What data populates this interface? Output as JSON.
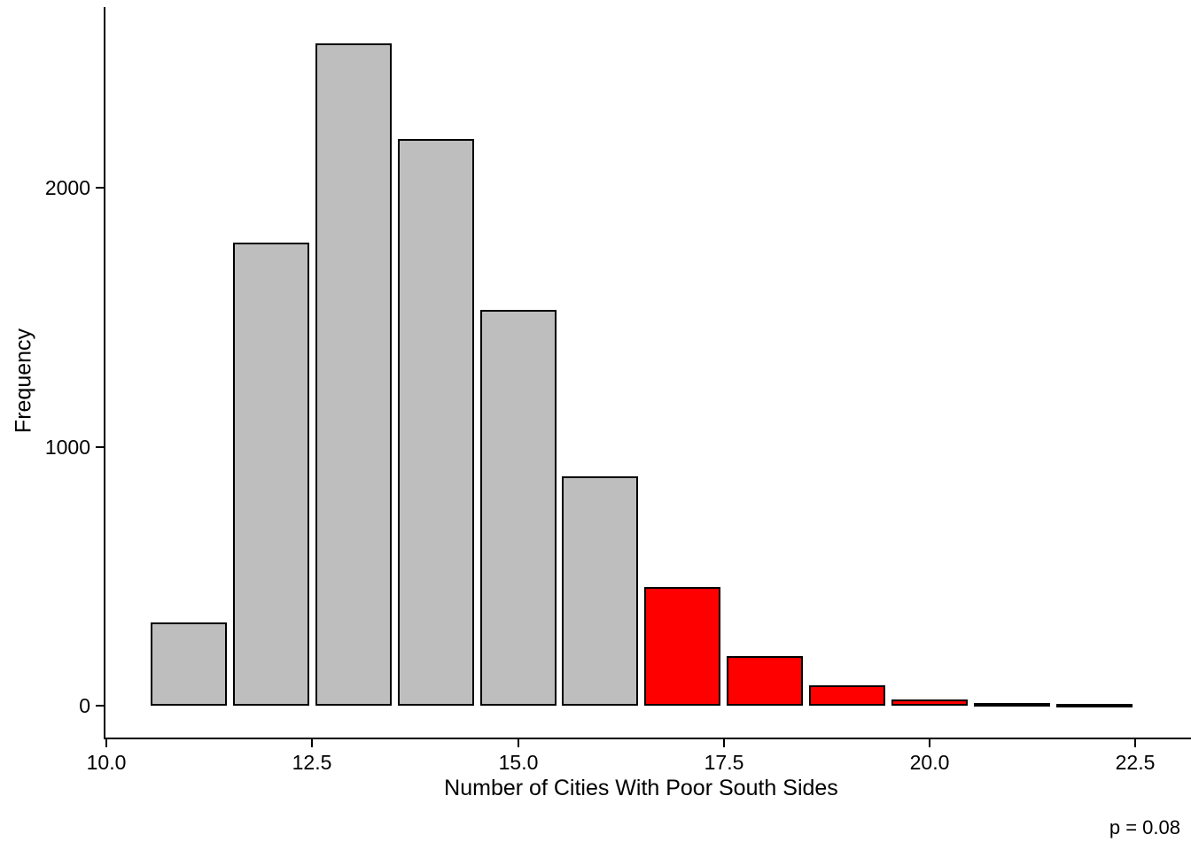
{
  "chart_data": {
    "type": "bar",
    "subtype": "histogram",
    "title": "",
    "xlabel": "Number of Cities With Poor South Sides",
    "ylabel": "Frequency",
    "annotation": "p = 0.08",
    "x": [
      11,
      12,
      13,
      14,
      15,
      16,
      17,
      18,
      19,
      20,
      21,
      22
    ],
    "values": [
      320,
      1790,
      2560,
      2190,
      1530,
      885,
      460,
      190,
      80,
      25,
      10,
      3
    ],
    "bar_color_keys": [
      "gray",
      "gray",
      "gray",
      "gray",
      "gray",
      "gray",
      "red",
      "red",
      "red",
      "red",
      "red",
      "red"
    ],
    "colors": {
      "gray": "#BEBEBE",
      "red": "#FF0000",
      "border": "#000000",
      "text": "#000000",
      "background": "#FFFFFF"
    },
    "x_ticks": [
      {
        "value": 10.0,
        "label": "10.0"
      },
      {
        "value": 12.5,
        "label": "12.5"
      },
      {
        "value": 15.0,
        "label": "15.0"
      },
      {
        "value": 17.5,
        "label": "17.5"
      },
      {
        "value": 20.0,
        "label": "20.0"
      },
      {
        "value": 22.5,
        "label": "22.5"
      }
    ],
    "y_ticks": [
      {
        "value": 0,
        "label": "0"
      },
      {
        "value": 1000,
        "label": "1000"
      },
      {
        "value": 2000,
        "label": "2000"
      }
    ],
    "xlim": [
      10.0,
      23.2
    ],
    "ylim": [
      0,
      2700
    ],
    "grid": false,
    "legend": "none"
  }
}
